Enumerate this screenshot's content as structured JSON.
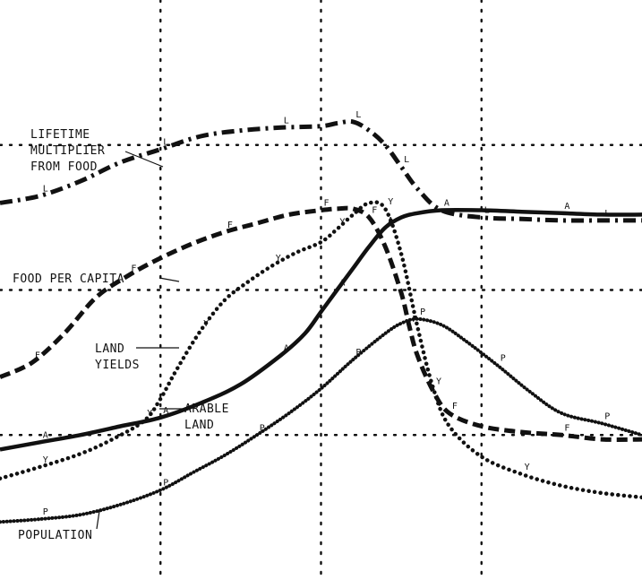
{
  "chart_data": {
    "type": "line",
    "title": "",
    "xlabel": "",
    "ylabel": "",
    "xlim": [
      0,
      4
    ],
    "ylim": [
      0,
      4
    ],
    "grid": true,
    "legend": "inline",
    "series": [
      {
        "name": "LIFETIME MULTIPLIER FROM FOOD",
        "label_lines": [
          "LIFETIME",
          "MULTIPLIER",
          "FROM FOOD"
        ],
        "marker": "L",
        "style": "dashdot",
        "x": [
          0,
          0.25,
          0.5,
          0.75,
          1.0,
          1.25,
          1.5,
          1.75,
          2.0,
          2.1,
          2.2,
          2.3,
          2.4,
          2.5,
          2.6,
          2.75,
          3.0,
          3.25,
          3.5,
          3.75,
          4.0
        ],
        "y": [
          2.6,
          2.65,
          2.75,
          2.88,
          2.97,
          3.06,
          3.1,
          3.12,
          3.13,
          3.15,
          3.16,
          3.1,
          3.0,
          2.85,
          2.7,
          2.55,
          2.5,
          2.49,
          2.48,
          2.48,
          2.48
        ]
      },
      {
        "name": "FOOD PER CAPITA",
        "label_lines": [
          "FOOD PER CAPITA"
        ],
        "marker": "F",
        "style": "dashed",
        "x": [
          0,
          0.2,
          0.4,
          0.6,
          0.8,
          1.0,
          1.2,
          1.4,
          1.6,
          1.8,
          2.0,
          2.1,
          2.2,
          2.3,
          2.4,
          2.5,
          2.55,
          2.6,
          2.7,
          2.8,
          3.0,
          3.25,
          3.5,
          3.75,
          4.0
        ],
        "y": [
          1.4,
          1.5,
          1.7,
          1.95,
          2.1,
          2.22,
          2.32,
          2.4,
          2.46,
          2.52,
          2.55,
          2.56,
          2.56,
          2.5,
          2.3,
          1.98,
          1.75,
          1.55,
          1.3,
          1.15,
          1.06,
          1.02,
          1.0,
          0.97,
          0.97
        ]
      },
      {
        "name": "LAND YIELDS",
        "label_lines": [
          "LAND",
          "YIELDS"
        ],
        "marker": "Y",
        "style": "dotted",
        "x": [
          0,
          0.25,
          0.5,
          0.7,
          0.9,
          1.0,
          1.1,
          1.25,
          1.4,
          1.55,
          1.7,
          1.85,
          2.0,
          2.1,
          2.2,
          2.3,
          2.4,
          2.5,
          2.6,
          2.7,
          2.8,
          3.0,
          3.25,
          3.5,
          3.75,
          4.0
        ],
        "y": [
          0.7,
          0.78,
          0.87,
          0.97,
          1.1,
          1.25,
          1.45,
          1.72,
          1.93,
          2.06,
          2.17,
          2.26,
          2.33,
          2.42,
          2.52,
          2.6,
          2.56,
          2.25,
          1.75,
          1.32,
          1.06,
          0.85,
          0.73,
          0.65,
          0.6,
          0.57
        ]
      },
      {
        "name": "ARABLE LAND",
        "label_lines": [
          "ARABLE",
          "LAND"
        ],
        "marker": "A",
        "style": "solid",
        "x": [
          0,
          0.25,
          0.5,
          0.75,
          1.0,
          1.25,
          1.5,
          1.75,
          1.9,
          2.0,
          2.1,
          2.2,
          2.3,
          2.4,
          2.5,
          2.6,
          2.75,
          3.0,
          3.25,
          3.5,
          3.75,
          4.0
        ],
        "y": [
          0.9,
          0.95,
          1.0,
          1.06,
          1.12,
          1.22,
          1.35,
          1.55,
          1.7,
          1.85,
          2.0,
          2.15,
          2.3,
          2.43,
          2.5,
          2.53,
          2.55,
          2.55,
          2.54,
          2.53,
          2.52,
          2.52
        ]
      },
      {
        "name": "POPULATION",
        "label_lines": [
          "POPULATION"
        ],
        "marker": "P",
        "style": "densedot",
        "x": [
          0,
          0.25,
          0.5,
          0.75,
          1.0,
          1.2,
          1.4,
          1.6,
          1.8,
          2.0,
          2.2,
          2.4,
          2.5,
          2.6,
          2.75,
          2.9,
          3.1,
          3.3,
          3.5,
          3.75,
          4.0
        ],
        "y": [
          0.4,
          0.42,
          0.45,
          0.52,
          0.62,
          0.74,
          0.86,
          1.0,
          1.15,
          1.32,
          1.52,
          1.7,
          1.77,
          1.8,
          1.76,
          1.65,
          1.48,
          1.3,
          1.15,
          1.08,
          1.0
        ]
      }
    ]
  }
}
